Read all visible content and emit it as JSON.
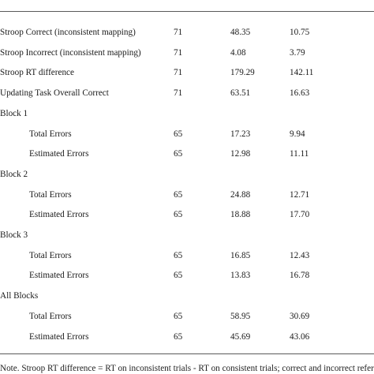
{
  "table": {
    "rows": [
      {
        "label": "Stroop Correct (inconsistent mapping)",
        "n": "71",
        "mean": "48.35",
        "sd": "10.75",
        "indent": false
      },
      {
        "label": "Stroop Incorrect (inconsistent mapping)",
        "n": "71",
        "mean": "4.08",
        "sd": "3.79",
        "indent": false
      },
      {
        "label": "Stroop RT difference",
        "n": "71",
        "mean": "179.29",
        "sd": "142.11",
        "indent": false
      },
      {
        "label": "Updating Task Overall Correct",
        "n": "71",
        "mean": "63.51",
        "sd": "16.63",
        "indent": false
      },
      {
        "label": "Block 1",
        "n": "",
        "mean": "",
        "sd": "",
        "indent": false
      },
      {
        "label": "Total Errors",
        "n": "65",
        "mean": "17.23",
        "sd": "9.94",
        "indent": true
      },
      {
        "label": "Estimated Errors",
        "n": "65",
        "mean": "12.98",
        "sd": "11.11",
        "indent": true
      },
      {
        "label": "Block 2",
        "n": "",
        "mean": "",
        "sd": "",
        "indent": false
      },
      {
        "label": "Total Errors",
        "n": "65",
        "mean": "24.88",
        "sd": "12.71",
        "indent": true
      },
      {
        "label": "Estimated Errors",
        "n": "65",
        "mean": "18.88",
        "sd": "17.70",
        "indent": true
      },
      {
        "label": "Block 3",
        "n": "",
        "mean": "",
        "sd": "",
        "indent": false
      },
      {
        "label": "Total Errors",
        "n": "65",
        "mean": "16.85",
        "sd": "12.43",
        "indent": true
      },
      {
        "label": "Estimated Errors",
        "n": "65",
        "mean": "13.83",
        "sd": "16.78",
        "indent": true
      },
      {
        "label": "All Blocks",
        "n": "",
        "mean": "",
        "sd": "",
        "indent": false
      },
      {
        "label": "Total Errors",
        "n": "65",
        "mean": "58.95",
        "sd": "30.69",
        "indent": true
      },
      {
        "label": "Estimated Errors",
        "n": "65",
        "mean": "45.69",
        "sd": "43.06",
        "indent": true
      }
    ]
  },
  "footnote": "Note. Stroop RT difference = RT on inconsistent trials - RT on consistent trials; correct and incorrect refer to"
}
